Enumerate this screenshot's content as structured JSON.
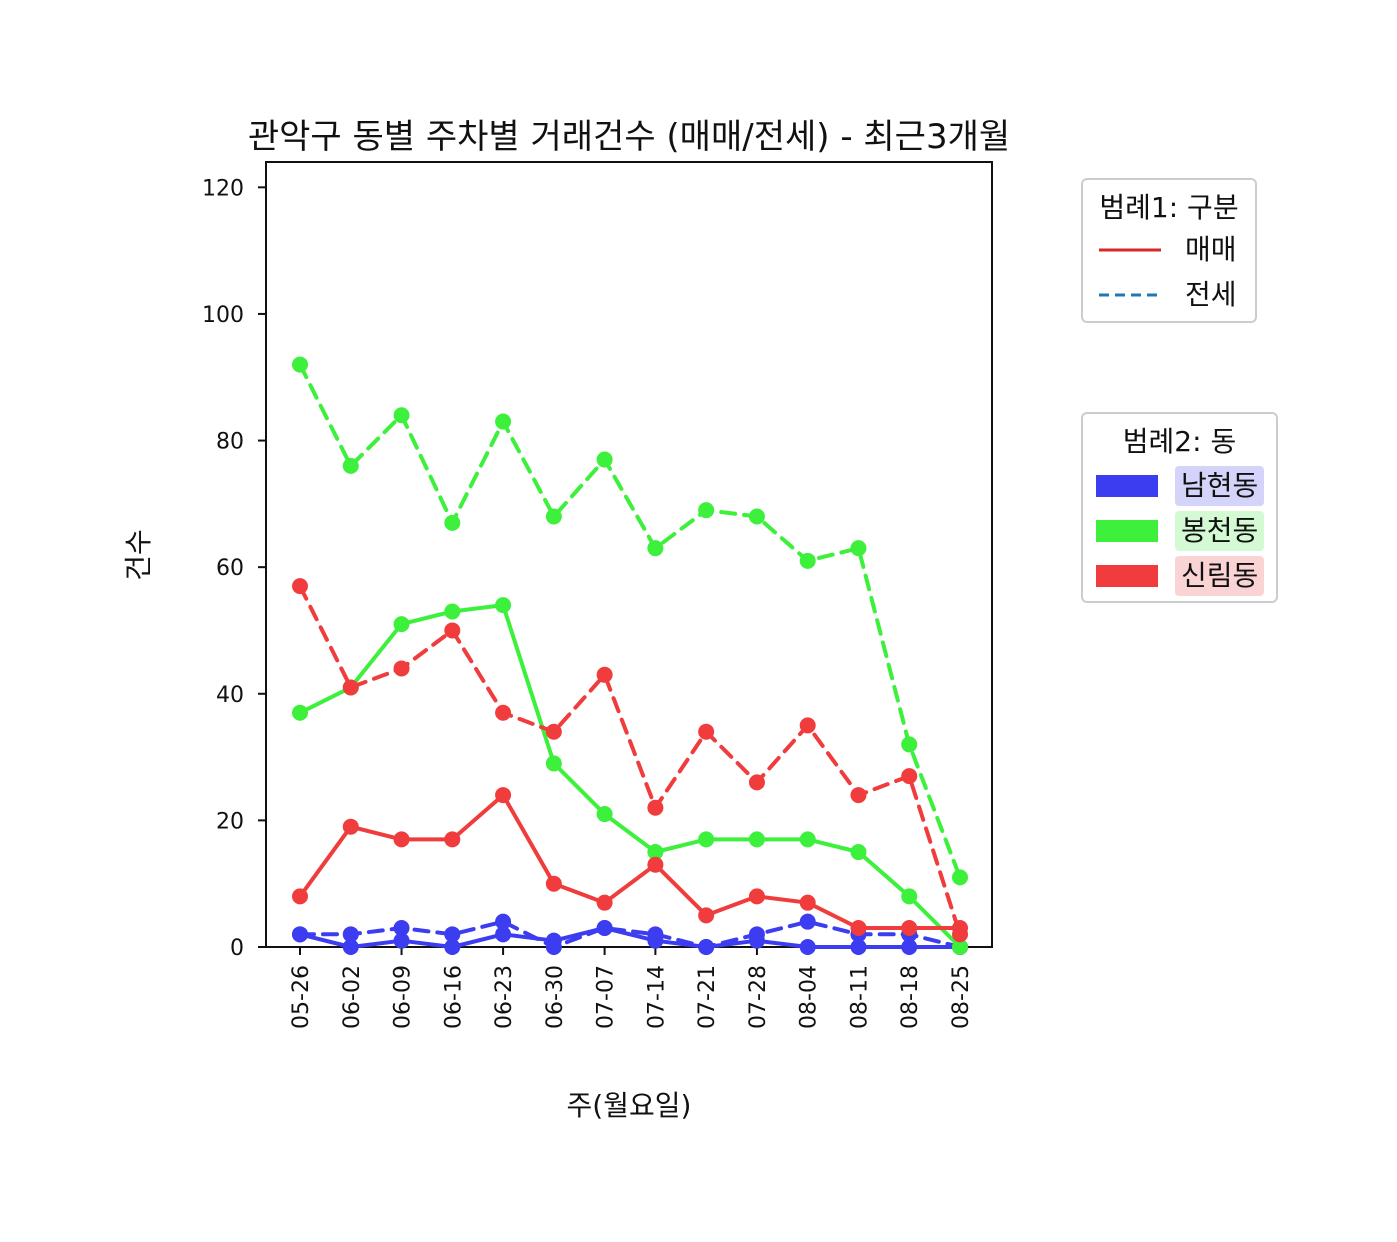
{
  "chart_data": {
    "type": "line",
    "title": "관악구 동별 주차별 거래건수 (매매/전세) - 최근3개월",
    "xlabel": "주(월요일)",
    "ylabel": "건수",
    "ylim": [
      0,
      124
    ],
    "yticks": [
      0,
      20,
      40,
      60,
      80,
      100,
      120
    ],
    "categories": [
      "05-26",
      "06-02",
      "06-09",
      "06-16",
      "06-23",
      "06-30",
      "07-07",
      "07-14",
      "07-21",
      "07-28",
      "08-04",
      "08-11",
      "08-18",
      "08-25"
    ],
    "colors": {
      "남현동": "#3c3cf0",
      "봉천동": "#3cf03c",
      "신림동": "#f03c3c"
    },
    "series": [
      {
        "dong": "남현동",
        "kind": "매매",
        "values": [
          2,
          0,
          1,
          0,
          2,
          1,
          3,
          1,
          0,
          1,
          0,
          0,
          0,
          0
        ]
      },
      {
        "dong": "남현동",
        "kind": "전세",
        "values": [
          2,
          2,
          3,
          2,
          4,
          0,
          3,
          2,
          0,
          2,
          4,
          2,
          2,
          0
        ]
      },
      {
        "dong": "봉천동",
        "kind": "매매",
        "values": [
          37,
          41,
          51,
          53,
          54,
          29,
          21,
          15,
          17,
          17,
          17,
          15,
          8,
          0
        ]
      },
      {
        "dong": "봉천동",
        "kind": "전세",
        "values": [
          92,
          76,
          84,
          67,
          83,
          68,
          77,
          63,
          69,
          68,
          61,
          63,
          32,
          11
        ]
      },
      {
        "dong": "신림동",
        "kind": "매매",
        "values": [
          8,
          19,
          17,
          17,
          24,
          10,
          7,
          13,
          5,
          8,
          7,
          3,
          3,
          3
        ]
      },
      {
        "dong": "신림동",
        "kind": "전세",
        "values": [
          57,
          41,
          44,
          50,
          37,
          34,
          43,
          22,
          34,
          26,
          35,
          24,
          27,
          2
        ]
      }
    ],
    "grid": false,
    "legend1": {
      "title": "범례1: 구분",
      "items": [
        {
          "label": "매매",
          "style": "solid",
          "color": "#d62728"
        },
        {
          "label": "전세",
          "style": "dashed",
          "color": "#1f77b4"
        }
      ]
    },
    "legend2": {
      "title": "범례2: 동",
      "items": [
        {
          "label": "남현동",
          "color": "#3c3cf0",
          "bg": "#d4d4fa"
        },
        {
          "label": "봉천동",
          "color": "#3cf03c",
          "bg": "#d4fad4"
        },
        {
          "label": "신림동",
          "color": "#f03c3c",
          "bg": "#fad4d4"
        }
      ]
    },
    "legend_placement": "right, outside plot"
  }
}
